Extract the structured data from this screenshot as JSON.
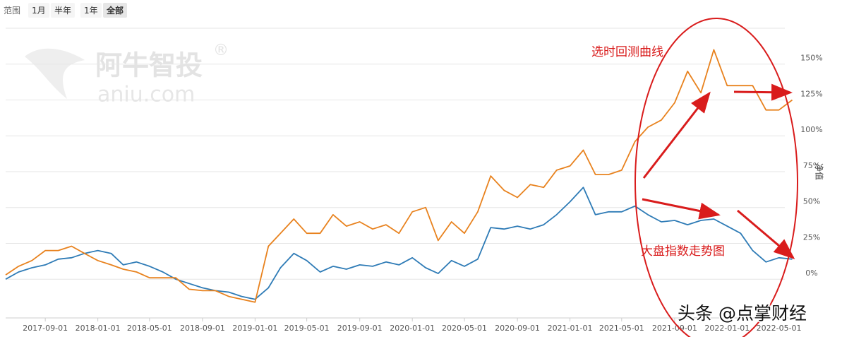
{
  "range_selector": {
    "label": "范围",
    "options": [
      "1月",
      "半年",
      "1年",
      "全部"
    ]
  },
  "watermark": {
    "brand": "阿牛智投",
    "mark": "®",
    "domain": "aniu.com"
  },
  "credit": "头条 @点掌财经",
  "chart_data": {
    "type": "line",
    "y_label": "净值",
    "annotations": [
      "选时回测曲线",
      "大盘指数走势图"
    ],
    "x": [
      "2017-06-01",
      "2017-07-01",
      "2017-08-01",
      "2017-09-01",
      "2017-10-01",
      "2017-11-01",
      "2017-12-01",
      "2018-01-01",
      "2018-02-01",
      "2018-03-01",
      "2018-04-01",
      "2018-05-01",
      "2018-06-01",
      "2018-07-01",
      "2018-08-01",
      "2018-09-01",
      "2018-10-01",
      "2018-11-01",
      "2018-12-01",
      "2019-01-01",
      "2019-02-01",
      "2019-03-01",
      "2019-04-01",
      "2019-05-01",
      "2019-06-01",
      "2019-07-01",
      "2019-08-01",
      "2019-09-01",
      "2019-10-01",
      "2019-11-01",
      "2019-12-01",
      "2020-01-01",
      "2020-02-01",
      "2020-03-01",
      "2020-04-01",
      "2020-05-01",
      "2020-06-01",
      "2020-07-01",
      "2020-08-01",
      "2020-09-01",
      "2020-10-01",
      "2020-11-01",
      "2020-12-01",
      "2021-01-01",
      "2021-02-01",
      "2021-03-01",
      "2021-04-01",
      "2021-05-01",
      "2021-06-01",
      "2021-07-01",
      "2021-08-01",
      "2021-09-01",
      "2021-10-01",
      "2021-11-01",
      "2021-12-01",
      "2022-01-01",
      "2022-02-01",
      "2022-03-01",
      "2022-04-01",
      "2022-05-01",
      "2022-06-01"
    ],
    "series": [
      {
        "color": "#2e7bb6",
        "values": [
          0,
          5,
          8,
          10,
          14,
          15,
          18,
          20,
          18,
          10,
          12,
          9,
          5,
          0,
          -3,
          -6,
          -8,
          -9,
          -12,
          -14,
          -6,
          8,
          18,
          13,
          5,
          9,
          7,
          10,
          9,
          12,
          10,
          15,
          8,
          4,
          13,
          9,
          14,
          36,
          35,
          37,
          35,
          38,
          45,
          54,
          64,
          45,
          47,
          47,
          51,
          45,
          40,
          41,
          38,
          41,
          42,
          37,
          32,
          20,
          12,
          15,
          14
        ]
      },
      {
        "color": "#e8821e",
        "values": [
          3,
          9,
          13,
          20,
          20,
          23,
          18,
          13,
          10,
          7,
          5,
          1,
          1,
          1,
          -7,
          -8,
          -8,
          -12,
          -14,
          -16,
          23,
          32,
          42,
          32,
          32,
          45,
          37,
          40,
          35,
          38,
          32,
          47,
          50,
          27,
          40,
          32,
          47,
          72,
          62,
          57,
          66,
          64,
          76,
          79,
          90,
          73,
          73,
          76,
          96,
          106,
          111,
          123,
          145,
          130,
          160,
          135,
          135,
          135,
          118,
          118,
          125
        ]
      }
    ],
    "xlim": [
      "2017-06-01",
      "2022-06-10"
    ],
    "xticks": [
      "2017-09-01",
      "2018-01-01",
      "2018-05-01",
      "2018-09-01",
      "2019-01-01",
      "2019-05-01",
      "2019-09-01",
      "2020-01-01",
      "2020-05-01",
      "2020-09-01",
      "2021-01-01",
      "2021-05-01",
      "2021-09-01",
      "2022-01-01",
      "2022-05-01"
    ],
    "ylim": [
      -27,
      175
    ],
    "yticks": [
      {
        "value": 0,
        "label": "0%"
      },
      {
        "value": 25,
        "label": "25%"
      },
      {
        "value": 50,
        "label": "50%"
      },
      {
        "value": 75,
        "label": "75%"
      },
      {
        "value": 100,
        "label": "100%"
      },
      {
        "value": 125,
        "label": "125%"
      },
      {
        "value": 150,
        "label": "150%"
      },
      {
        "value": 175,
        "label": ""
      }
    ],
    "grid": true
  }
}
